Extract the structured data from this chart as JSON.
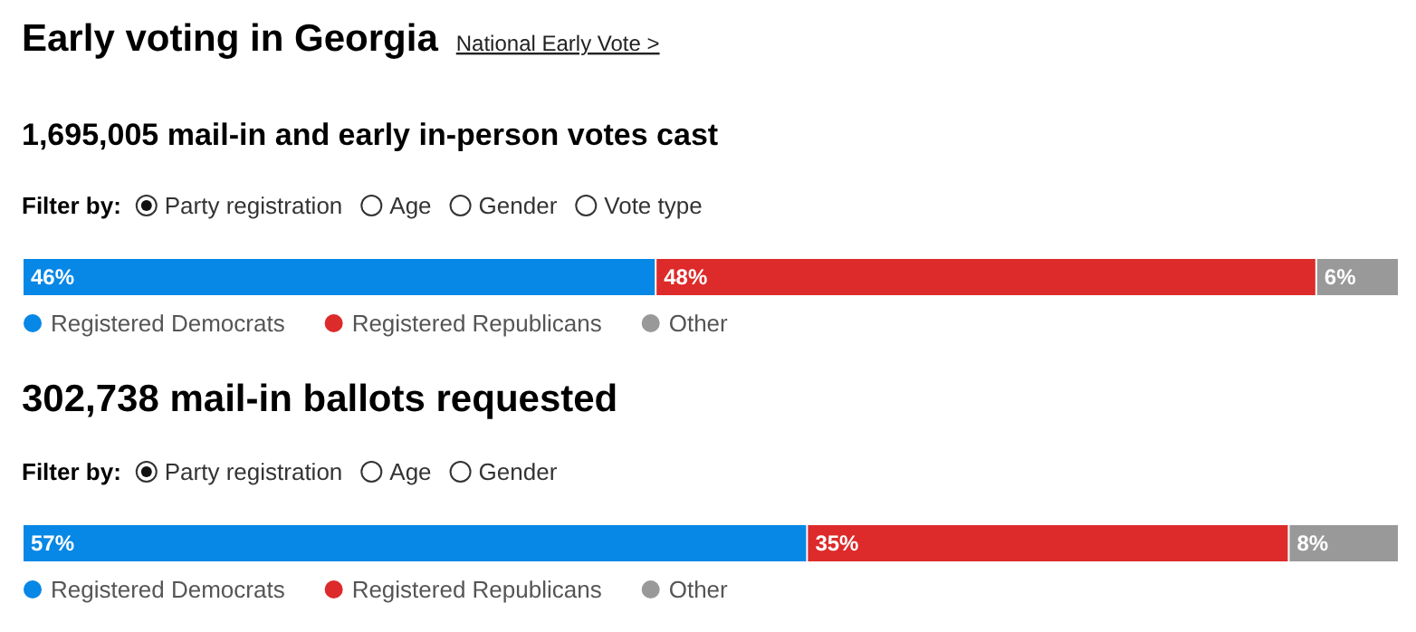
{
  "chart_data": [
    {
      "type": "bar",
      "orientation": "horizontal",
      "stacked": true,
      "title": "Early voting in Georgia",
      "subtitle": "1,695,005 mail-in and early in-person votes cast",
      "annotations": [
        "National Early Vote >",
        "Filter by:",
        "Party registration",
        "Age",
        "Gender",
        "Vote type"
      ],
      "categories": [
        null
      ],
      "xlim": [
        0,
        100
      ],
      "tick_labels": false,
      "legend": "bottom",
      "series": [
        {
          "name": "Registered Democrats",
          "color": "#0787e6",
          "values": [
            46
          ],
          "value_labels": [
            "46%"
          ]
        },
        {
          "name": "Registered Republicans",
          "color": "#dd2a2a",
          "values": [
            48
          ],
          "value_labels": [
            "48%"
          ]
        },
        {
          "name": "Other",
          "color": "#999999",
          "values": [
            6
          ],
          "value_labels": [
            "6%"
          ]
        }
      ]
    },
    {
      "type": "bar",
      "orientation": "horizontal",
      "stacked": true,
      "title": "302,738 mail-in ballots requested",
      "annotations": [
        "Filter by:",
        "Party registration",
        "Age",
        "Gender"
      ],
      "categories": [
        null
      ],
      "xlim": [
        0,
        100
      ],
      "tick_labels": false,
      "legend": "bottom",
      "series": [
        {
          "name": "Registered Democrats",
          "color": "#0787e6",
          "values": [
            57
          ],
          "value_labels": [
            "57%"
          ]
        },
        {
          "name": "Registered Republicans",
          "color": "#dd2a2a",
          "values": [
            35
          ],
          "value_labels": [
            "35%"
          ]
        },
        {
          "name": "Other",
          "color": "#999999",
          "values": [
            8
          ],
          "value_labels": [
            "8%"
          ]
        }
      ]
    }
  ]
}
